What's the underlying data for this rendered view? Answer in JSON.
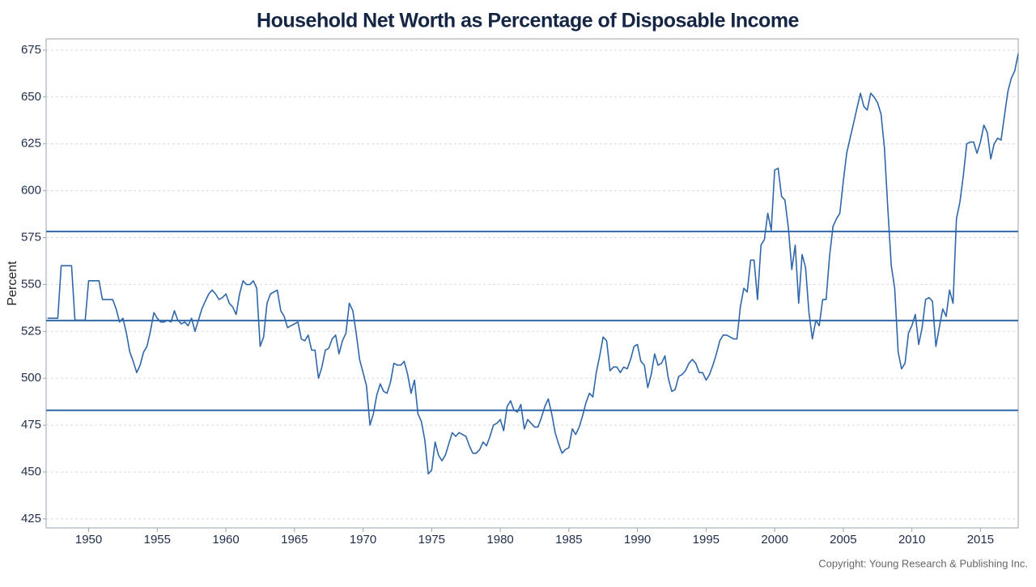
{
  "chart_data": {
    "type": "line",
    "title": "Household Net Worth as Percentage of Disposable Income",
    "y_label": "Percent",
    "copyright": "Copyright: Young Research & Publishing Inc.",
    "xlim": [
      1946.9,
      2017.75
    ],
    "ylim": [
      420.2,
      681
    ],
    "xticks": [
      1950,
      1955,
      1960,
      1965,
      1970,
      1975,
      1980,
      1985,
      1990,
      1995,
      2000,
      2005,
      2010,
      2015
    ],
    "yticks": [
      425,
      450,
      475,
      500,
      525,
      550,
      575,
      600,
      625,
      650,
      675
    ],
    "grid": true,
    "reference_lines": [
      578.3,
      530.8,
      482.9
    ],
    "reference_color": "#2f67a8",
    "x": [
      1947,
      1947.25,
      1947.5,
      1947.75,
      1948,
      1948.25,
      1948.5,
      1948.75,
      1949,
      1949.25,
      1949.5,
      1949.75,
      1950,
      1950.25,
      1950.5,
      1950.75,
      1951,
      1951.25,
      1951.5,
      1951.75,
      1952,
      1952.25,
      1952.5,
      1952.75,
      1953,
      1953.25,
      1953.5,
      1953.75,
      1954,
      1954.25,
      1954.5,
      1954.75,
      1955,
      1955.25,
      1955.5,
      1955.75,
      1956,
      1956.25,
      1956.5,
      1956.75,
      1957,
      1957.25,
      1957.5,
      1957.75,
      1958,
      1958.25,
      1958.5,
      1958.75,
      1959,
      1959.25,
      1959.5,
      1959.75,
      1960,
      1960.25,
      1960.5,
      1960.75,
      1961,
      1961.25,
      1961.5,
      1961.75,
      1962,
      1962.25,
      1962.5,
      1962.75,
      1963,
      1963.25,
      1963.5,
      1963.75,
      1964,
      1964.25,
      1964.5,
      1964.75,
      1965,
      1965.25,
      1965.5,
      1965.75,
      1966,
      1966.25,
      1966.5,
      1966.75,
      1967,
      1967.25,
      1967.5,
      1967.75,
      1968,
      1968.25,
      1968.5,
      1968.75,
      1969,
      1969.25,
      1969.5,
      1969.75,
      1970,
      1970.25,
      1970.5,
      1970.75,
      1971,
      1971.25,
      1971.5,
      1971.75,
      1972,
      1972.25,
      1972.5,
      1972.75,
      1973,
      1973.25,
      1973.5,
      1973.75,
      1974,
      1974.25,
      1974.5,
      1974.75,
      1975,
      1975.25,
      1975.5,
      1975.75,
      1976,
      1976.25,
      1976.5,
      1976.75,
      1977,
      1977.25,
      1977.5,
      1977.75,
      1978,
      1978.25,
      1978.5,
      1978.75,
      1979,
      1979.25,
      1979.5,
      1979.75,
      1980,
      1980.25,
      1980.5,
      1980.75,
      1981,
      1981.25,
      1981.5,
      1981.75,
      1982,
      1982.25,
      1982.5,
      1982.75,
      1983,
      1983.25,
      1983.5,
      1983.75,
      1984,
      1984.25,
      1984.5,
      1984.75,
      1985,
      1985.25,
      1985.5,
      1985.75,
      1986,
      1986.25,
      1986.5,
      1986.75,
      1987,
      1987.25,
      1987.5,
      1987.75,
      1988,
      1988.25,
      1988.5,
      1988.75,
      1989,
      1989.25,
      1989.5,
      1989.75,
      1990,
      1990.25,
      1990.5,
      1990.75,
      1991,
      1991.25,
      1991.5,
      1991.75,
      1992,
      1992.25,
      1992.5,
      1992.75,
      1993,
      1993.25,
      1993.5,
      1993.75,
      1994,
      1994.25,
      1994.5,
      1994.75,
      1995,
      1995.25,
      1995.5,
      1995.75,
      1996,
      1996.25,
      1996.5,
      1996.75,
      1997,
      1997.25,
      1997.5,
      1997.75,
      1998,
      1998.25,
      1998.5,
      1998.75,
      1999,
      1999.25,
      1999.5,
      1999.75,
      2000,
      2000.25,
      2000.5,
      2000.75,
      2001,
      2001.25,
      2001.5,
      2001.75,
      2002,
      2002.25,
      2002.5,
      2002.75,
      2003,
      2003.25,
      2003.5,
      2003.75,
      2004,
      2004.25,
      2004.5,
      2004.75,
      2005,
      2005.25,
      2005.5,
      2005.75,
      2006,
      2006.25,
      2006.5,
      2006.75,
      2007,
      2007.25,
      2007.5,
      2007.75,
      2008,
      2008.25,
      2008.5,
      2008.75,
      2009,
      2009.25,
      2009.5,
      2009.75,
      2010,
      2010.25,
      2010.5,
      2010.75,
      2011,
      2011.25,
      2011.5,
      2011.75,
      2012,
      2012.25,
      2012.5,
      2012.75,
      2013,
      2013.25,
      2013.5,
      2013.75,
      2014,
      2014.25,
      2014.5,
      2014.75,
      2015,
      2015.25,
      2015.5,
      2015.75,
      2016,
      2016.25,
      2016.5,
      2016.75,
      2017,
      2017.25,
      2017.5,
      2017.75
    ],
    "series": [
      {
        "color": "#2f67a8",
        "values": [
          532,
          532,
          532,
          532,
          560,
          560,
          560,
          560,
          531,
          531,
          531,
          531,
          552,
          552,
          552,
          552,
          542,
          542,
          542,
          542,
          537,
          530,
          532,
          524,
          514,
          509,
          503,
          507,
          514,
          517,
          525,
          535,
          532,
          530,
          530,
          531,
          530,
          536,
          531,
          529,
          530,
          528,
          532,
          525,
          531,
          537,
          541,
          545,
          547,
          545,
          542,
          543,
          545,
          540,
          538,
          534,
          545,
          552,
          550,
          550,
          552,
          548,
          517,
          522,
          540,
          545,
          546,
          547,
          536,
          533,
          527,
          528,
          529,
          530,
          521,
          520,
          523,
          515,
          515,
          500,
          506,
          515,
          516,
          521,
          523,
          513,
          520,
          524,
          540,
          536,
          524,
          510,
          503,
          496,
          475,
          481,
          491,
          497,
          493,
          492,
          498,
          508,
          507,
          507,
          509,
          502,
          492,
          499,
          481,
          477,
          467,
          449,
          451,
          466,
          459,
          456,
          459,
          465,
          471,
          469,
          471,
          470,
          469,
          464,
          460,
          460,
          462,
          466,
          464,
          469,
          475,
          476,
          478,
          472,
          485,
          488,
          483,
          482,
          486,
          473,
          478,
          476,
          474,
          474,
          479,
          485,
          489,
          481,
          471,
          465,
          460,
          462,
          463,
          473,
          470,
          474,
          480,
          487,
          492,
          490,
          503,
          512,
          522,
          520,
          504,
          506,
          506,
          503,
          506,
          505,
          510,
          517,
          518,
          509,
          507,
          495,
          502,
          513,
          507,
          508,
          512,
          500,
          493,
          494,
          501,
          502,
          504,
          508,
          510,
          508,
          503,
          503,
          499,
          502,
          507,
          513,
          520,
          523,
          523,
          522,
          521,
          521,
          538,
          548,
          546,
          563,
          563,
          542,
          571,
          574,
          588,
          579,
          611,
          612,
          597,
          595,
          580,
          558,
          571,
          540,
          566,
          559,
          535,
          521,
          531,
          528,
          542,
          542,
          565,
          581,
          585,
          588,
          605,
          620,
          628,
          636,
          644,
          652,
          645,
          643,
          652,
          650,
          647,
          641,
          623,
          590,
          560,
          548,
          514,
          505,
          508,
          524,
          528,
          534,
          518,
          527,
          542,
          543,
          541,
          517,
          527,
          537,
          533,
          547,
          540,
          585,
          594,
          608,
          625,
          626,
          626,
          620,
          626,
          635,
          631,
          617,
          625,
          628,
          627,
          640,
          653,
          660,
          664,
          673
        ]
      }
    ]
  }
}
